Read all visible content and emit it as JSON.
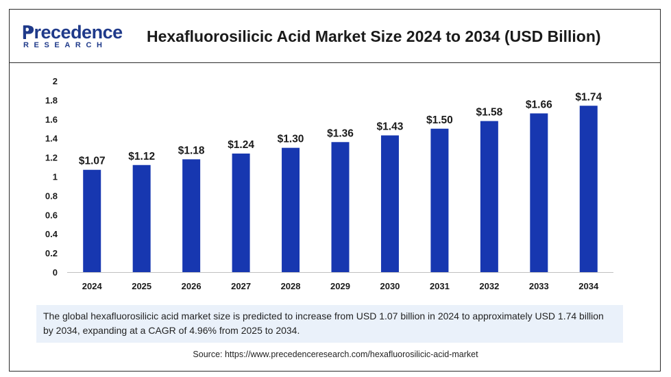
{
  "brand": {
    "name": "Precedence",
    "sub": "RESEARCH",
    "logo_icon": "precedence-p-mark",
    "color": "#1f3a8a"
  },
  "title": "Hexafluorosilicic Acid Market Size 2024 to 2034 (USD Billion)",
  "chart_data": {
    "type": "bar",
    "title": "Hexafluorosilicic Acid Market Size 2024 to 2034 (USD Billion)",
    "categories": [
      "2024",
      "2025",
      "2026",
      "2027",
      "2028",
      "2029",
      "2030",
      "2031",
      "2032",
      "2033",
      "2034"
    ],
    "values": [
      1.07,
      1.12,
      1.18,
      1.24,
      1.3,
      1.36,
      1.43,
      1.5,
      1.58,
      1.66,
      1.74
    ],
    "value_labels": [
      "$1.07",
      "$1.12",
      "$1.18",
      "$1.24",
      "$1.30",
      "$1.36",
      "$1.43",
      "$1.50",
      "$1.58",
      "$1.66",
      "$1.74"
    ],
    "y_ticks": [
      "0",
      "0.2",
      "0.4",
      "0.6",
      "0.8",
      "1",
      "1.2",
      "1.4",
      "1.6",
      "1.8",
      "2"
    ],
    "ylim": [
      0,
      2
    ],
    "xlabel": "",
    "ylabel": "",
    "grid": false,
    "bar_color": "#1737b0"
  },
  "summary": "The global hexafluorosilicic acid market size is predicted to increase from USD 1.07 billion in 2024 to approximately USD 1.74 billion by 2034, expanding at a CAGR of 4.96% from 2025 to 2034.",
  "source": "Source: https://www.precedenceresearch.com/hexafluorosilicic-acid-market"
}
